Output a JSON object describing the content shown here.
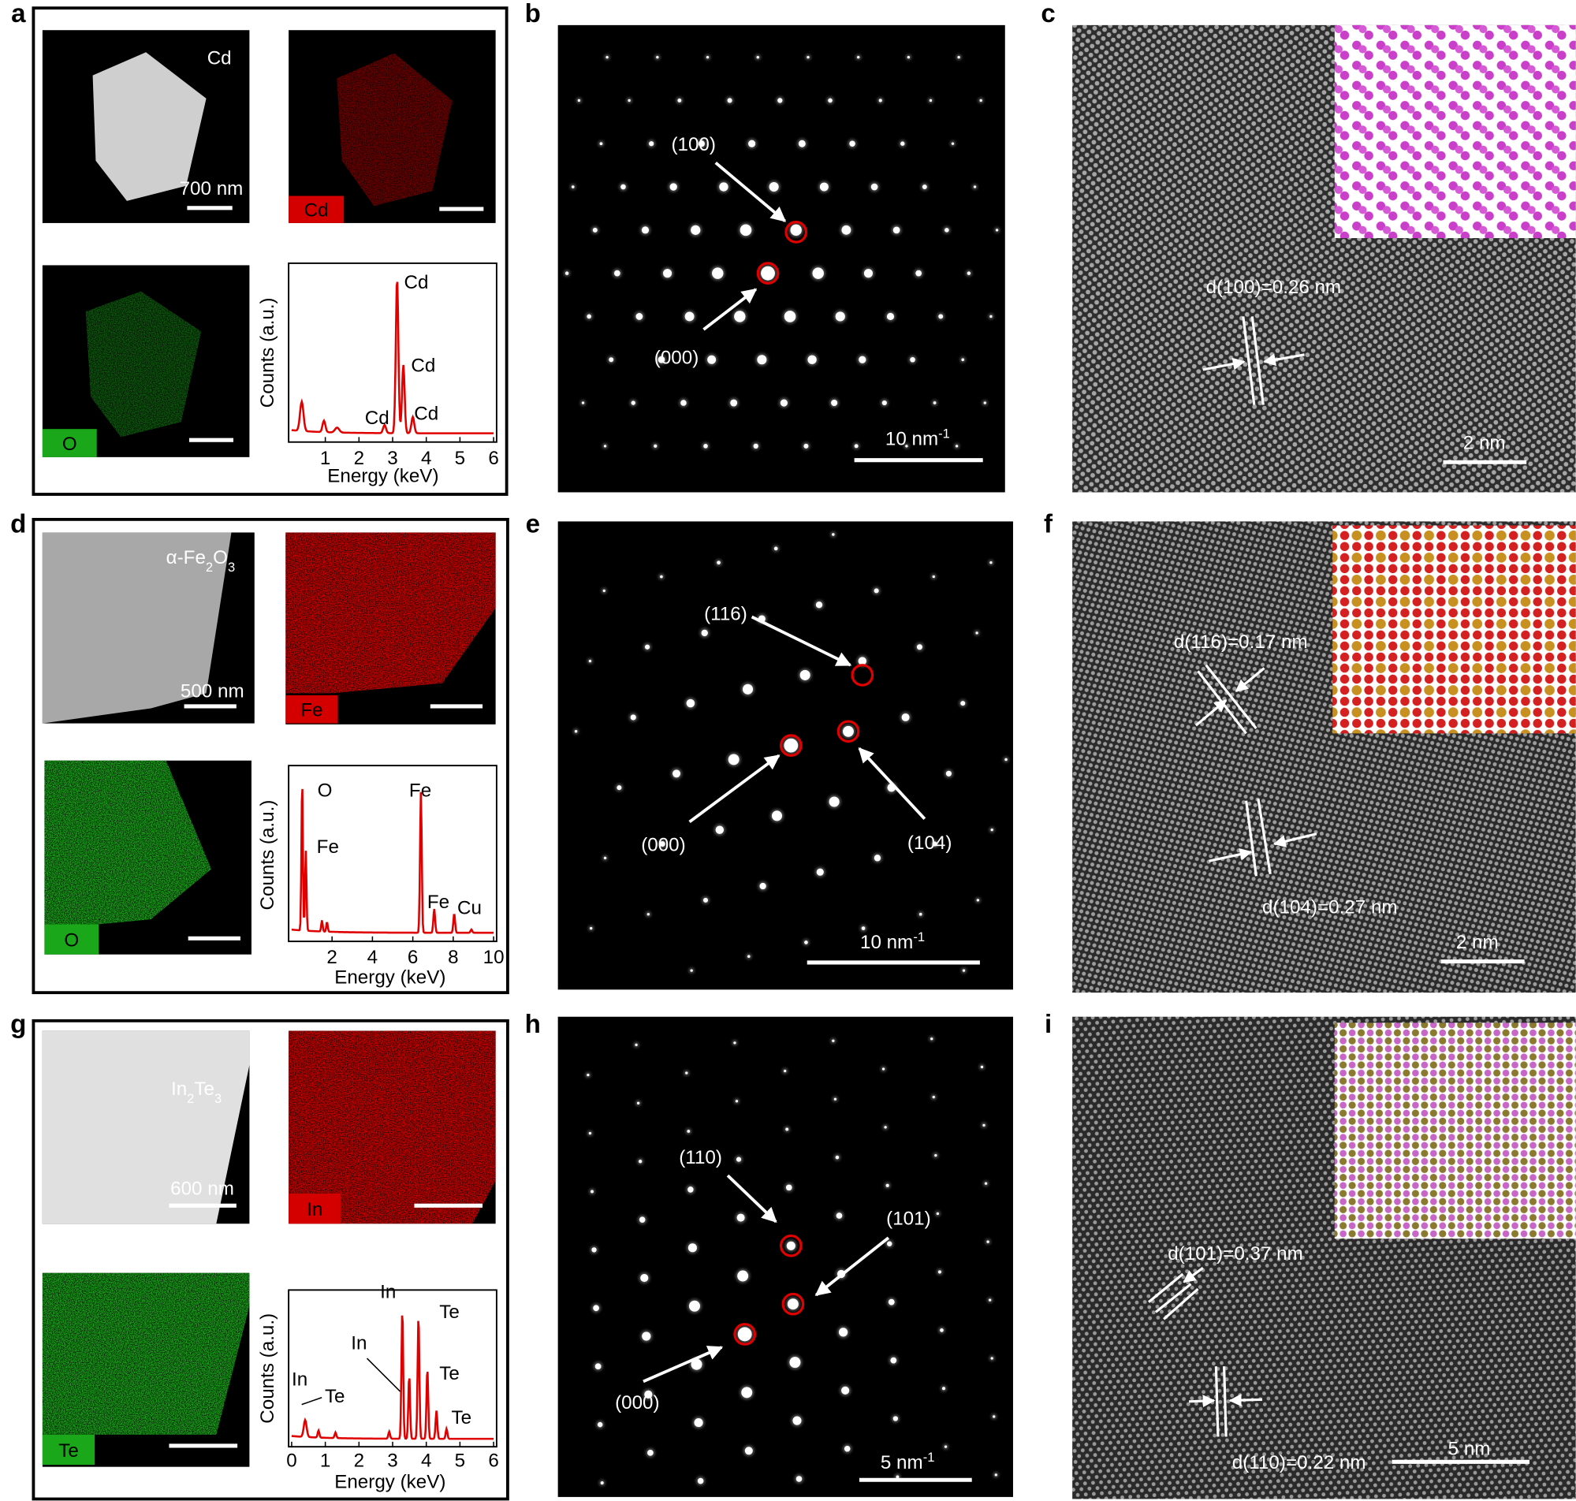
{
  "panels": [
    {
      "label": "a",
      "image_label": [
        "Cd"
      ],
      "scale_bar": "700 nm",
      "maps": [
        "Cd",
        "O"
      ],
      "spectrum": {
        "peak_labels": [
          "Cd",
          "Cd",
          "Cd",
          "Cd"
        ],
        "y_label": "Counts (a.u.)",
        "x_label": "Energy (keV)",
        "x_ticks": [
          1,
          2,
          3,
          4,
          5,
          6
        ]
      }
    },
    {
      "label": "b",
      "spot_labels": [
        "(100)",
        "(000)"
      ],
      "scale_bar": "10 nm",
      "scale_bar_exponent": "-1"
    },
    {
      "label": "c",
      "spacing_labels": [
        "d(100)=0.26 nm"
      ],
      "scale_bar": "2 nm"
    },
    {
      "label": "d",
      "image_label": [
        "α-Fe",
        "2",
        "O",
        "3"
      ],
      "scale_bar": "500 nm",
      "maps": [
        "Fe",
        "O"
      ],
      "spectrum": {
        "peak_labels": [
          "O",
          "Fe",
          "Fe",
          "Fe",
          "Cu"
        ],
        "y_label": "Counts (a.u.)",
        "x_label": "Energy (keV)",
        "x_ticks": [
          2,
          4,
          6,
          8,
          10
        ]
      }
    },
    {
      "label": "e",
      "spot_labels": [
        "(116)",
        "(000)",
        "(104)"
      ],
      "scale_bar": "10 nm",
      "scale_bar_exponent": "-1"
    },
    {
      "label": "f",
      "spacing_labels": [
        "d(116)=0.17 nm",
        "d(104)=0.27 nm"
      ],
      "scale_bar": "2 nm"
    },
    {
      "label": "g",
      "image_label": [
        "In",
        "2",
        "Te",
        "3"
      ],
      "scale_bar": "600 nm",
      "maps": [
        "In",
        "Te"
      ],
      "spectrum": {
        "peak_labels": [
          "In",
          "Te",
          "In",
          "In",
          "Te",
          "Te",
          "Te"
        ],
        "y_label": "Counts (a.u.)",
        "x_label": "Energy (keV)",
        "x_ticks": [
          0,
          1,
          2,
          3,
          4,
          5,
          6
        ]
      }
    },
    {
      "label": "h",
      "spot_labels": [
        "(110)",
        "(101)",
        "(000)"
      ],
      "scale_bar": "5 nm",
      "scale_bar_exponent": "-1"
    },
    {
      "label": "i",
      "spacing_labels": [
        "d(101)=0.37 nm",
        "d(110)=0.22 nm"
      ],
      "scale_bar": "5 nm"
    }
  ]
}
